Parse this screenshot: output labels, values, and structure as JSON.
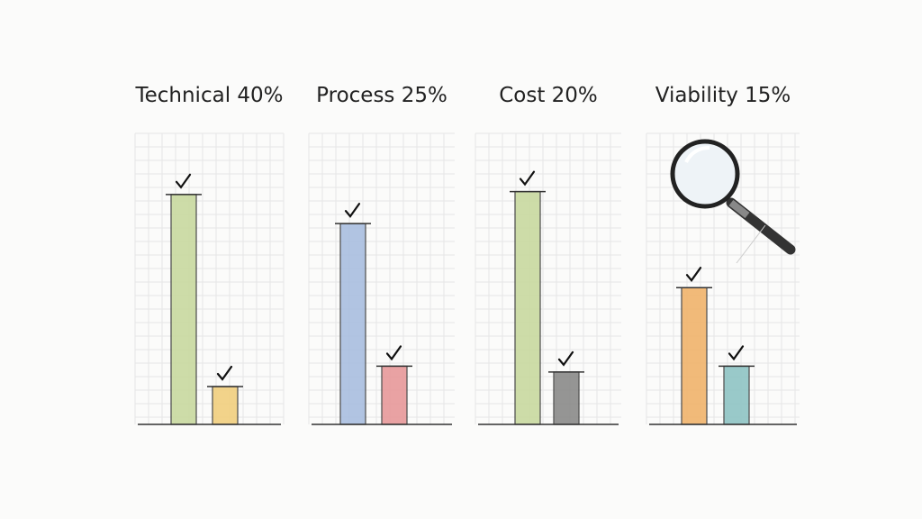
{
  "chart_data": [
    {
      "type": "bar",
      "title": "Technical 40%",
      "categories": [
        null,
        null
      ],
      "values": [
        79,
        13
      ],
      "colors": [
        "#c9d9a0",
        "#f2cf7e"
      ],
      "ylim": [
        0,
        100
      ]
    },
    {
      "type": "bar",
      "title": "Process 25%",
      "categories": [
        null,
        null
      ],
      "values": [
        69,
        20
      ],
      "colors": [
        "#a9bfe0",
        "#e8999a"
      ],
      "ylim": [
        0,
        100
      ]
    },
    {
      "type": "bar",
      "title": "Cost 20%",
      "categories": [
        null,
        null
      ],
      "values": [
        80,
        18
      ],
      "colors": [
        "#c9d9a0",
        "#8a8a8a"
      ],
      "ylim": [
        0,
        100
      ]
    },
    {
      "type": "bar",
      "title": "Viability 15%",
      "categories": [
        null,
        null
      ],
      "values": [
        47,
        20
      ],
      "colors": [
        "#f0b46c",
        "#8fc4c4"
      ],
      "ylim": [
        0,
        100
      ]
    }
  ]
}
